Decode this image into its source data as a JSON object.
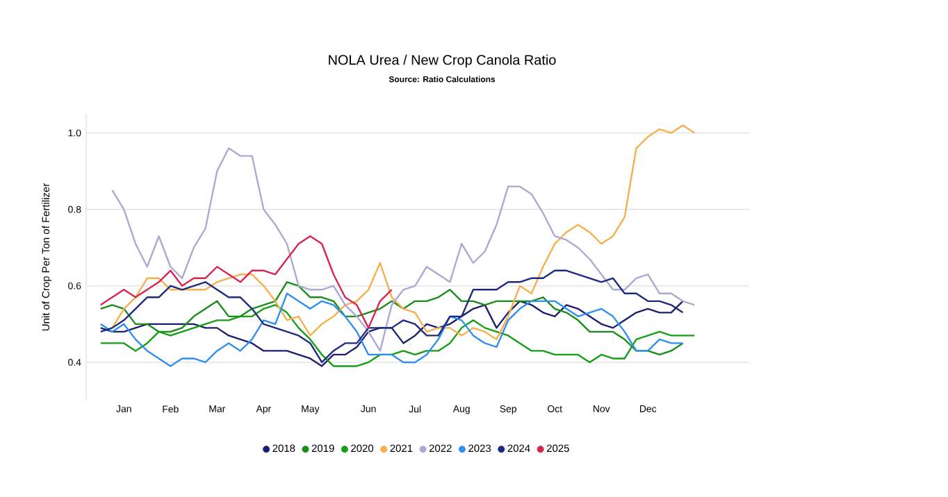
{
  "chart_data": {
    "type": "line",
    "title": "NOLA Urea / New Crop Canola Ratio",
    "subtitle": "Source: Ratio Calculations",
    "ylabel": "Unit of Crop Per Ton of Fertilizer",
    "categories": [
      null,
      null,
      "Jan",
      null,
      null,
      null,
      "Feb",
      null,
      null,
      null,
      "Mar",
      null,
      null,
      null,
      "Apr",
      null,
      null,
      null,
      "May",
      null,
      null,
      null,
      null,
      "Jun",
      null,
      null,
      null,
      "Jul",
      null,
      null,
      null,
      "Aug",
      null,
      null,
      null,
      "Sep",
      null,
      null,
      null,
      "Oct",
      null,
      null,
      null,
      "Nov",
      null,
      null,
      null,
      "Dec",
      null,
      null,
      null,
      null
    ],
    "ylim": [
      0.3,
      1.05
    ],
    "yticks": [
      {
        "value": 0.4,
        "label": "0.4"
      },
      {
        "value": 0.6,
        "label": "0.6"
      },
      {
        "value": 0.8,
        "label": "0.8"
      },
      {
        "value": 1.0,
        "label": "1.0"
      }
    ],
    "grid": "y",
    "legend": "bottom",
    "series": [
      {
        "name": "2018",
        "color": "#1b1f6e",
        "values": [
          0.49,
          0.48,
          0.48,
          0.49,
          0.5,
          0.5,
          0.5,
          0.5,
          0.5,
          0.49,
          0.49,
          0.47,
          0.46,
          0.45,
          0.43,
          0.43,
          0.43,
          0.42,
          0.41,
          0.39,
          0.42,
          0.42,
          0.44,
          0.48,
          0.49,
          0.49,
          0.45,
          0.47,
          0.5,
          0.49,
          0.5,
          0.52,
          0.54,
          0.55,
          0.49,
          0.53,
          0.56,
          0.55,
          0.53,
          0.52,
          0.55,
          0.54,
          0.52,
          0.5,
          0.49,
          0.51,
          0.53,
          0.54,
          0.53,
          0.53,
          0.56,
          null
        ]
      },
      {
        "name": "2019",
        "color": "#1a8c1a",
        "values": [
          0.54,
          0.55,
          0.54,
          0.5,
          0.5,
          0.48,
          0.48,
          0.49,
          0.52,
          0.54,
          0.56,
          0.52,
          0.52,
          0.54,
          0.55,
          0.56,
          0.61,
          0.6,
          0.57,
          0.57,
          0.56,
          0.52,
          0.52,
          0.53,
          0.54,
          0.56,
          0.54,
          0.56,
          0.56,
          0.57,
          0.59,
          0.56,
          0.56,
          0.55,
          0.56,
          0.56,
          0.56,
          0.56,
          0.57,
          0.54,
          0.53,
          0.51,
          0.48,
          0.48,
          0.48,
          0.46,
          0.43,
          0.43,
          0.42,
          0.43,
          0.45,
          null
        ]
      },
      {
        "name": "2020",
        "color": "#139e13",
        "values": [
          0.45,
          0.45,
          0.45,
          0.43,
          0.45,
          0.48,
          0.47,
          0.48,
          0.49,
          0.5,
          0.51,
          0.51,
          0.52,
          0.52,
          0.54,
          0.55,
          0.53,
          0.49,
          0.46,
          0.42,
          0.39,
          0.39,
          0.39,
          0.4,
          0.42,
          0.42,
          0.43,
          0.42,
          0.43,
          0.43,
          0.45,
          0.49,
          0.51,
          0.49,
          0.48,
          0.47,
          0.45,
          0.43,
          0.43,
          0.42,
          0.42,
          0.42,
          0.4,
          0.42,
          0.41,
          0.41,
          0.46,
          0.47,
          0.48,
          0.47,
          0.47,
          0.47
        ]
      },
      {
        "name": "2021",
        "color": "#f5b04d",
        "values": [
          null,
          0.49,
          0.54,
          0.57,
          0.62,
          0.62,
          0.59,
          0.59,
          0.59,
          0.59,
          0.61,
          0.62,
          0.63,
          0.63,
          0.6,
          0.56,
          0.51,
          0.52,
          0.47,
          0.5,
          0.52,
          0.55,
          0.56,
          0.59,
          0.66,
          0.57,
          0.54,
          0.53,
          0.48,
          0.49,
          0.49,
          0.47,
          0.49,
          0.48,
          0.46,
          0.52,
          0.6,
          0.58,
          0.65,
          0.71,
          0.74,
          0.76,
          0.74,
          0.71,
          0.73,
          0.78,
          0.96,
          0.99,
          1.01,
          1.0,
          1.02,
          1.0
        ]
      },
      {
        "name": "2022",
        "color": "#a9aad4",
        "values": [
          null,
          0.85,
          0.8,
          0.71,
          0.65,
          0.73,
          0.65,
          0.62,
          0.7,
          0.75,
          0.9,
          0.96,
          0.94,
          0.94,
          0.8,
          0.76,
          0.71,
          0.6,
          0.59,
          0.59,
          0.6,
          0.55,
          0.52,
          0.48,
          0.43,
          0.55,
          0.59,
          0.6,
          0.65,
          0.63,
          0.61,
          0.71,
          0.66,
          0.69,
          0.76,
          0.86,
          0.86,
          0.84,
          0.79,
          0.73,
          0.72,
          0.7,
          0.67,
          0.63,
          0.59,
          0.59,
          0.62,
          0.63,
          0.58,
          0.58,
          0.56,
          0.55
        ]
      },
      {
        "name": "2023",
        "color": "#2f8ff0",
        "values": [
          0.5,
          0.48,
          0.5,
          0.46,
          0.43,
          0.41,
          0.39,
          0.41,
          0.41,
          0.4,
          0.43,
          0.45,
          0.43,
          0.46,
          0.51,
          0.5,
          0.58,
          0.56,
          0.54,
          0.56,
          0.55,
          0.52,
          0.48,
          0.42,
          0.42,
          0.42,
          0.4,
          0.4,
          0.42,
          0.46,
          0.52,
          0.51,
          0.47,
          0.45,
          0.44,
          0.51,
          0.54,
          0.56,
          0.56,
          0.56,
          0.54,
          0.52,
          0.53,
          0.54,
          0.52,
          0.48,
          0.43,
          0.43,
          0.46,
          0.45,
          0.45,
          null
        ]
      },
      {
        "name": "2024",
        "color": "#1c2a80",
        "values": [
          0.48,
          0.49,
          0.51,
          0.54,
          0.57,
          0.57,
          0.6,
          0.59,
          0.6,
          0.61,
          0.59,
          0.57,
          0.57,
          0.54,
          0.5,
          0.49,
          0.48,
          0.47,
          0.45,
          0.4,
          0.43,
          0.45,
          0.45,
          0.49,
          0.49,
          0.49,
          0.51,
          0.5,
          0.47,
          0.47,
          0.52,
          0.52,
          0.59,
          0.59,
          0.59,
          0.61,
          0.61,
          0.62,
          0.62,
          0.64,
          0.64,
          0.63,
          0.62,
          0.61,
          0.62,
          0.58,
          0.58,
          0.56,
          0.56,
          0.55,
          0.53,
          null
        ]
      },
      {
        "name": "2025",
        "color": "#d8254f",
        "values": [
          0.55,
          0.57,
          0.59,
          0.57,
          0.59,
          0.61,
          0.64,
          0.6,
          0.62,
          0.62,
          0.65,
          0.63,
          0.61,
          0.64,
          0.64,
          0.63,
          0.67,
          0.71,
          0.73,
          0.71,
          0.63,
          0.57,
          0.55,
          0.49,
          0.56,
          0.59,
          null,
          null,
          null,
          null,
          null,
          null,
          null,
          null,
          null,
          null,
          null,
          null,
          null,
          null,
          null,
          null,
          null,
          null,
          null,
          null,
          null,
          null,
          null,
          null,
          null,
          null
        ]
      }
    ]
  }
}
